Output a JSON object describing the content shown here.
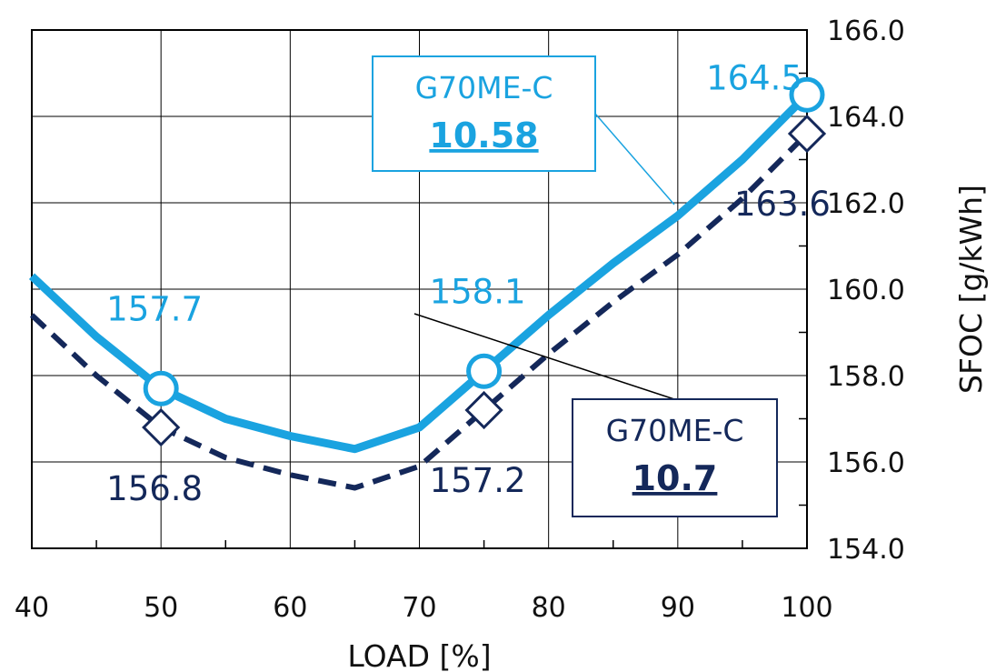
{
  "chart_data": {
    "type": "line",
    "title": "",
    "xlabel": "LOAD [%]",
    "ylabel": "SFOC [g/kWh]",
    "xlim": [
      40,
      100
    ],
    "ylim": [
      154,
      166
    ],
    "x_ticks": [
      "40",
      "50",
      "60",
      "70",
      "80",
      "90",
      "100"
    ],
    "y_ticks": [
      "166.0",
      "164.0",
      "162.0",
      "160.0",
      "158.0",
      "156.0",
      "154.0"
    ],
    "grid": true,
    "series": [
      {
        "name": "G70ME-C 10.58",
        "color": "#1aa3e0",
        "line_style": "solid",
        "marker": "circle",
        "x": [
          40,
          45,
          50,
          55,
          60,
          65,
          70,
          75,
          80,
          85,
          90,
          95,
          100
        ],
        "y": [
          160.3,
          158.9,
          157.7,
          157.0,
          156.6,
          156.3,
          156.8,
          158.1,
          159.4,
          160.6,
          161.7,
          163.0,
          164.5
        ],
        "labeled_points": [
          {
            "x": 50,
            "y": 157.7,
            "label": "157.7"
          },
          {
            "x": 75,
            "y": 158.1,
            "label": "158.1"
          },
          {
            "x": 100,
            "y": 164.5,
            "label": "164.5"
          }
        ],
        "legend_box": {
          "model": "G70ME-C",
          "value": "10.58"
        }
      },
      {
        "name": "G70ME-C 10.7",
        "color": "#14285a",
        "line_style": "dashed",
        "marker": "diamond",
        "x": [
          40,
          45,
          50,
          55,
          60,
          65,
          70,
          75,
          80,
          85,
          90,
          95,
          100
        ],
        "y": [
          159.4,
          158.0,
          156.8,
          156.1,
          155.7,
          155.4,
          155.9,
          157.2,
          158.5,
          159.7,
          160.8,
          162.1,
          163.6
        ],
        "labeled_points": [
          {
            "x": 50,
            "y": 156.8,
            "label": "156.8"
          },
          {
            "x": 75,
            "y": 157.2,
            "label": "157.2"
          },
          {
            "x": 100,
            "y": 163.6,
            "label": "163.6"
          }
        ],
        "legend_box": {
          "model": "G70ME-C",
          "value": "10.7"
        }
      }
    ]
  }
}
